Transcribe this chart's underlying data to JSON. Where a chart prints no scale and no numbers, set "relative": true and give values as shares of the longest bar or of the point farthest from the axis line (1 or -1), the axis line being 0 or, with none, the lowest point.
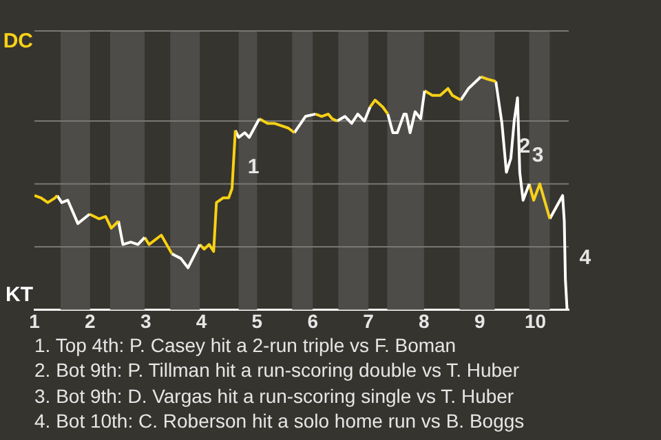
{
  "chart_data": {
    "type": "line",
    "relative": true,
    "series": [
      {
        "color": "#f7d110",
        "x": [
          1.0,
          1.12,
          1.24,
          1.37,
          1.41
        ],
        "values": [
          0.49,
          0.48,
          0.46,
          0.48,
          0.49
        ]
      },
      {
        "color": "#fffff6",
        "x": [
          1.41,
          1.49,
          1.6,
          1.78,
          1.99
        ],
        "values": [
          0.49,
          0.46,
          0.47,
          0.37,
          0.41
        ]
      },
      {
        "color": "#f7d111",
        "x": [
          1.99,
          2.16,
          2.28,
          2.38,
          2.51
        ],
        "values": [
          0.41,
          0.39,
          0.4,
          0.35,
          0.38
        ]
      },
      {
        "color": "#fffff7",
        "x": [
          2.51,
          2.59,
          2.73,
          2.86,
          2.98
        ],
        "values": [
          0.38,
          0.28,
          0.29,
          0.28,
          0.31
        ]
      },
      {
        "color": "#f7d112",
        "x": [
          2.98,
          3.06,
          3.28,
          3.47
        ],
        "values": [
          0.31,
          0.28,
          0.32,
          0.24
        ]
      },
      {
        "color": "#fffff8",
        "x": [
          3.47,
          3.63,
          3.76,
          3.97
        ],
        "values": [
          0.24,
          0.22,
          0.18,
          0.28
        ]
      },
      {
        "color": "#f7d113",
        "x": [
          3.97,
          4.05,
          4.14,
          4.22,
          4.27,
          4.39,
          4.49,
          4.55,
          4.61
        ],
        "values": [
          0.28,
          0.26,
          0.28,
          0.25,
          0.46,
          0.48,
          0.48,
          0.52,
          0.77
        ]
      },
      {
        "color": "#fffff9",
        "x": [
          4.61,
          4.67,
          4.78,
          4.86,
          5.04
        ],
        "values": [
          0.77,
          0.74,
          0.76,
          0.74,
          0.82
        ]
      },
      {
        "color": "#f7d114",
        "x": [
          5.04,
          5.19,
          5.31,
          5.56,
          5.67
        ],
        "values": [
          0.82,
          0.8,
          0.8,
          0.78,
          0.76
        ]
      },
      {
        "color": "#fffffa",
        "x": [
          5.67,
          5.87,
          6.05
        ],
        "values": [
          0.76,
          0.83,
          0.84
        ]
      },
      {
        "color": "#f7d115",
        "x": [
          6.05,
          6.16,
          6.28,
          6.35,
          6.44
        ],
        "values": [
          0.84,
          0.83,
          0.84,
          0.82,
          0.81
        ]
      },
      {
        "color": "#fffffb",
        "x": [
          6.44,
          6.58,
          6.7,
          6.81,
          6.93,
          7.03
        ],
        "values": [
          0.81,
          0.83,
          0.8,
          0.84,
          0.81,
          0.87
        ]
      },
      {
        "color": "#f7d116",
        "x": [
          7.03,
          7.12,
          7.26,
          7.35
        ],
        "values": [
          0.87,
          0.9,
          0.87,
          0.84
        ]
      },
      {
        "color": "#fffffc",
        "x": [
          7.35,
          7.44,
          7.52,
          7.64,
          7.68,
          7.75,
          7.84,
          7.94,
          8.01
        ],
        "values": [
          0.84,
          0.76,
          0.76,
          0.84,
          0.84,
          0.76,
          0.85,
          0.82,
          0.94
        ]
      },
      {
        "color": "#f7d117",
        "x": [
          8.01,
          8.15,
          8.29,
          8.43,
          8.51,
          8.66
        ],
        "values": [
          0.94,
          0.92,
          0.92,
          0.95,
          0.92,
          0.9
        ]
      },
      {
        "color": "#fffffd",
        "x": [
          8.66,
          8.8,
          9.02
        ],
        "values": [
          0.9,
          0.95,
          1
        ]
      },
      {
        "color": "#f7d118",
        "x": [
          9.02,
          9.14,
          9.29
        ],
        "values": [
          1,
          0.99,
          0.98
        ]
      },
      {
        "color": "#fffffe",
        "x": [
          9.29,
          9.4,
          9.48,
          9.56,
          9.62,
          9.68,
          9.72,
          9.78,
          9.89
        ],
        "values": [
          0.98,
          0.8,
          0.59,
          0.65,
          0.81,
          0.91,
          0.59,
          0.47,
          0.54
        ]
      },
      {
        "color": "#f7d119",
        "x": [
          9.89,
          9.97,
          10.08,
          10.26
        ],
        "values": [
          0.54,
          0.47,
          0.54,
          0.39
        ]
      },
      {
        "color": "#ffffff",
        "x": [
          10.26,
          10.49,
          10.52,
          10.54,
          10.57
        ],
        "values": [
          0.39,
          0.49,
          0.38,
          0.13,
          0
        ]
      }
    ],
    "xlim": [
      1,
      10.6
    ],
    "xticks": [
      {
        "value": 1,
        "label": "1"
      },
      {
        "value": 2,
        "label": "2"
      },
      {
        "value": 3,
        "label": "3"
      },
      {
        "value": 4,
        "label": "4"
      },
      {
        "value": 5,
        "label": "5"
      },
      {
        "value": 6,
        "label": "6"
      },
      {
        "value": 7,
        "label": "7"
      },
      {
        "value": 8,
        "label": "8"
      },
      {
        "value": 9,
        "label": "9"
      },
      {
        "value": 10,
        "label": "10"
      }
    ],
    "ref_lines": [
      {
        "axis": "y",
        "value": 0.27,
        "color": "#7a7875"
      },
      {
        "axis": "y",
        "value": 0.54,
        "color": "#7a7875"
      },
      {
        "axis": "y",
        "value": 0.81,
        "color": "#7a7875"
      }
    ],
    "bands": [
      {
        "axis": "x",
        "from": 1.47,
        "to": 2,
        "color": "#4e4c49"
      },
      {
        "axis": "x",
        "from": 2.36,
        "to": 2.98,
        "color": "#4e4c49"
      },
      {
        "axis": "x",
        "from": 3.44,
        "to": 3.97,
        "color": "#4e4c49"
      },
      {
        "axis": "x",
        "from": 4.67,
        "to": 5,
        "color": "#4e4c49"
      },
      {
        "axis": "x",
        "from": 5.63,
        "to": 6,
        "color": "#4e4c49"
      },
      {
        "axis": "x",
        "from": 6.46,
        "to": 7,
        "color": "#4e4c49"
      },
      {
        "axis": "x",
        "from": 7.34,
        "to": 8,
        "color": "#4e4c49"
      },
      {
        "axis": "x",
        "from": 8.64,
        "to": 9.27,
        "color": "#4e4c49"
      },
      {
        "axis": "x",
        "from": 9.89,
        "to": 10.26,
        "color": "#4e4c49"
      }
    ],
    "annotations": [
      "DC",
      "KT",
      {
        "text": "1",
        "x": 4.61,
        "y": 0.61
      },
      {
        "text": "2",
        "x": 9.48,
        "y": 0.7
      },
      {
        "text": "3",
        "x": 9.72,
        "y": 0.66
      },
      {
        "text": "4",
        "x": 10.57,
        "y": 0.22
      },
      "1. Top 4th: P. Casey hit a 2-run triple vs F. Boman",
      "2. Bot 9th: P. Tillman hit a run-scoring double vs T. Huber",
      "3. Bot 9th: D. Vargas hit a run-scoring single vs T. Huber",
      "4. Bot 10th: C. Roberson hit a solo home run vs B. Boggs"
    ]
  }
}
